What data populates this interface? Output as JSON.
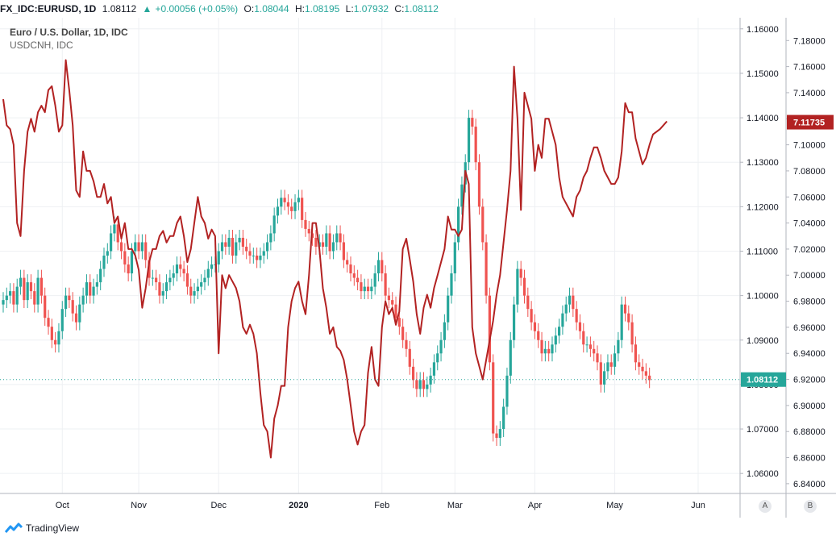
{
  "header": {
    "symbol": "FX_IDC:EURUSD, 1D",
    "last": "1.08112",
    "change": "+0.00056 (+0.05%)",
    "o_label": "O:",
    "o_value": "1.08044",
    "h_label": "H:",
    "h_value": "1.08195",
    "l_label": "L:",
    "l_value": "1.07932",
    "c_label": "C:",
    "c_value": "1.08112"
  },
  "legend": {
    "main": "Euro / U.S. Dollar, 1D, IDC",
    "overlay": "USDCNH, IDC"
  },
  "footer": {
    "brand": "TradingView"
  },
  "axis_buttons": {
    "a": "A",
    "b": "B"
  },
  "colors": {
    "up": "#26a69a",
    "down": "#ef5350",
    "overlay": "#b22222",
    "grid": "#eef0f3",
    "accent": "#26a69a"
  },
  "icons": {
    "brand": "tradingview-logo-icon",
    "trend": "triangle-up-icon"
  },
  "chart_data": {
    "type": "candlestick-with-overlay-line",
    "x_ticks": [
      "Oct",
      "Nov",
      "Dec",
      "2020",
      "Feb",
      "Mar",
      "Apr",
      "May",
      "Jun"
    ],
    "x_tick_index": [
      17,
      39,
      62,
      85,
      109,
      130,
      153,
      176,
      200
    ],
    "right_axis_ticks": [
      "1.16000",
      "1.15000",
      "1.14000",
      "1.13000",
      "1.12000",
      "1.11000",
      "1.10000",
      "1.09000",
      "1.08000",
      "1.07000",
      "1.06000"
    ],
    "left_axis_ticks": [
      "7.18000",
      "7.16000",
      "7.14000",
      "7.12000",
      "7.10000",
      "7.08000",
      "7.06000",
      "7.04000",
      "7.02000",
      "7.00000",
      "6.98000",
      "6.96000",
      "6.94000",
      "6.92000",
      "6.90000",
      "6.88000",
      "6.86000",
      "6.84000"
    ],
    "eurusd_range": [
      1.0555,
      1.1625
    ],
    "usdcnh_range": [
      6.8325,
      7.1975
    ],
    "last_eurusd": "1.08112",
    "last_usdcnh": "7.11735",
    "eurusd_close": [
      1.099,
      1.1,
      1.101,
      1.098,
      1.102,
      1.104,
      1.099,
      1.103,
      1.101,
      1.098,
      1.104,
      1.1,
      1.095,
      1.093,
      1.09,
      1.089,
      1.092,
      1.097,
      1.1,
      1.099,
      1.096,
      1.094,
      1.098,
      1.1,
      1.103,
      1.1,
      1.102,
      1.103,
      1.106,
      1.109,
      1.11,
      1.114,
      1.116,
      1.112,
      1.11,
      1.107,
      1.105,
      1.11,
      1.112,
      1.11,
      1.112,
      1.108,
      1.104,
      1.104,
      1.103,
      1.1,
      1.101,
      1.103,
      1.104,
      1.105,
      1.107,
      1.106,
      1.105,
      1.102,
      1.1,
      1.101,
      1.102,
      1.103,
      1.104,
      1.106,
      1.107,
      1.107,
      1.11,
      1.112,
      1.111,
      1.113,
      1.109,
      1.112,
      1.113,
      1.111,
      1.11,
      1.109,
      1.109,
      1.108,
      1.109,
      1.11,
      1.112,
      1.114,
      1.118,
      1.12,
      1.122,
      1.121,
      1.12,
      1.119,
      1.121,
      1.122,
      1.117,
      1.115,
      1.114,
      1.113,
      1.111,
      1.112,
      1.111,
      1.114,
      1.11,
      1.112,
      1.114,
      1.112,
      1.108,
      1.107,
      1.105,
      1.104,
      1.103,
      1.101,
      1.102,
      1.101,
      1.102,
      1.105,
      1.108,
      1.105,
      1.1,
      1.099,
      1.098,
      1.095,
      1.093,
      1.09,
      1.088,
      1.084,
      1.081,
      1.079,
      1.081,
      1.079,
      1.08,
      1.082,
      1.085,
      1.087,
      1.09,
      1.094,
      1.1,
      1.105,
      1.112,
      1.12,
      1.125,
      1.13,
      1.14,
      1.138,
      1.13,
      1.12,
      1.112,
      1.1,
      1.085,
      1.069,
      1.068,
      1.07,
      1.075,
      1.082,
      1.09,
      1.098,
      1.106,
      1.104,
      1.1,
      1.097,
      1.094,
      1.092,
      1.09,
      1.087,
      1.088,
      1.087,
      1.089,
      1.091,
      1.093,
      1.096,
      1.098,
      1.1,
      1.097,
      1.094,
      1.092,
      1.089,
      1.089,
      1.088,
      1.087,
      1.085,
      1.08,
      1.083,
      1.085,
      1.084,
      1.087,
      1.09,
      1.098,
      1.096,
      1.094,
      1.089,
      1.085,
      1.084,
      1.083,
      1.082,
      1.081
    ],
    "usdcnh_line": [
      7.135,
      7.115,
      7.112,
      7.1,
      7.04,
      7.03,
      7.08,
      7.11,
      7.12,
      7.11,
      7.125,
      7.13,
      7.125,
      7.142,
      7.145,
      7.13,
      7.11,
      7.115,
      7.165,
      7.142,
      7.115,
      7.065,
      7.06,
      7.095,
      7.08,
      7.08,
      7.072,
      7.06,
      7.06,
      7.07,
      7.055,
      7.06,
      7.04,
      7.045,
      7.028,
      7.04,
      7.02,
      7.02,
      7.015,
      7.004,
      6.975,
      6.99,
      7.01,
      7.02,
      7.02,
      7.03,
      7.034,
      7.025,
      7.03,
      7.03,
      7.04,
      7.045,
      7.03,
      7.01,
      7.02,
      7.04,
      7.06,
      7.045,
      7.04,
      7.028,
      7.035,
      7.03,
      6.94,
      7.0,
      6.99,
      7.0,
      6.995,
      6.99,
      6.98,
      6.96,
      6.955,
      6.962,
      6.955,
      6.94,
      6.91,
      6.885,
      6.88,
      6.86,
      6.89,
      6.9,
      6.915,
      6.915,
      6.96,
      6.98,
      6.99,
      6.995,
      6.98,
      6.97,
      7.0,
      7.04,
      7.04,
      7.02,
      6.99,
      6.975,
      6.955,
      6.96,
      6.945,
      6.942,
      6.935,
      6.92,
      6.9,
      6.88,
      6.87,
      6.88,
      6.885,
      6.925,
      6.945,
      6.92,
      6.915,
      6.96,
      6.98,
      6.97,
      6.975,
      6.962,
      6.972,
      7.02,
      7.028,
      7.012,
      6.995,
      6.97,
      6.955,
      6.975,
      6.985,
      6.975,
      6.99,
      7.0,
      7.01,
      7.02,
      7.045,
      7.035,
      7.035,
      7.03,
      7.035,
      7.08,
      7.07,
      6.96,
      6.94,
      6.93,
      6.92,
      6.935,
      6.95,
      6.965,
      6.985,
      7.0,
      7.025,
      7.05,
      7.08,
      7.16,
      7.12,
      7.05,
      7.14,
      7.13,
      7.12,
      7.08,
      7.1,
      7.09,
      7.12,
      7.12,
      7.11,
      7.1,
      7.075,
      7.06,
      7.055,
      7.05,
      7.045,
      7.06,
      7.065,
      7.075,
      7.08,
      7.09,
      7.098,
      7.098,
      7.09,
      7.08,
      7.075,
      7.07,
      7.07,
      7.075,
      7.095,
      7.132,
      7.125,
      7.125,
      7.105,
      7.095,
      7.085,
      7.09,
      7.1,
      7.108,
      7.11,
      7.112,
      7.115,
      7.118
    ]
  }
}
